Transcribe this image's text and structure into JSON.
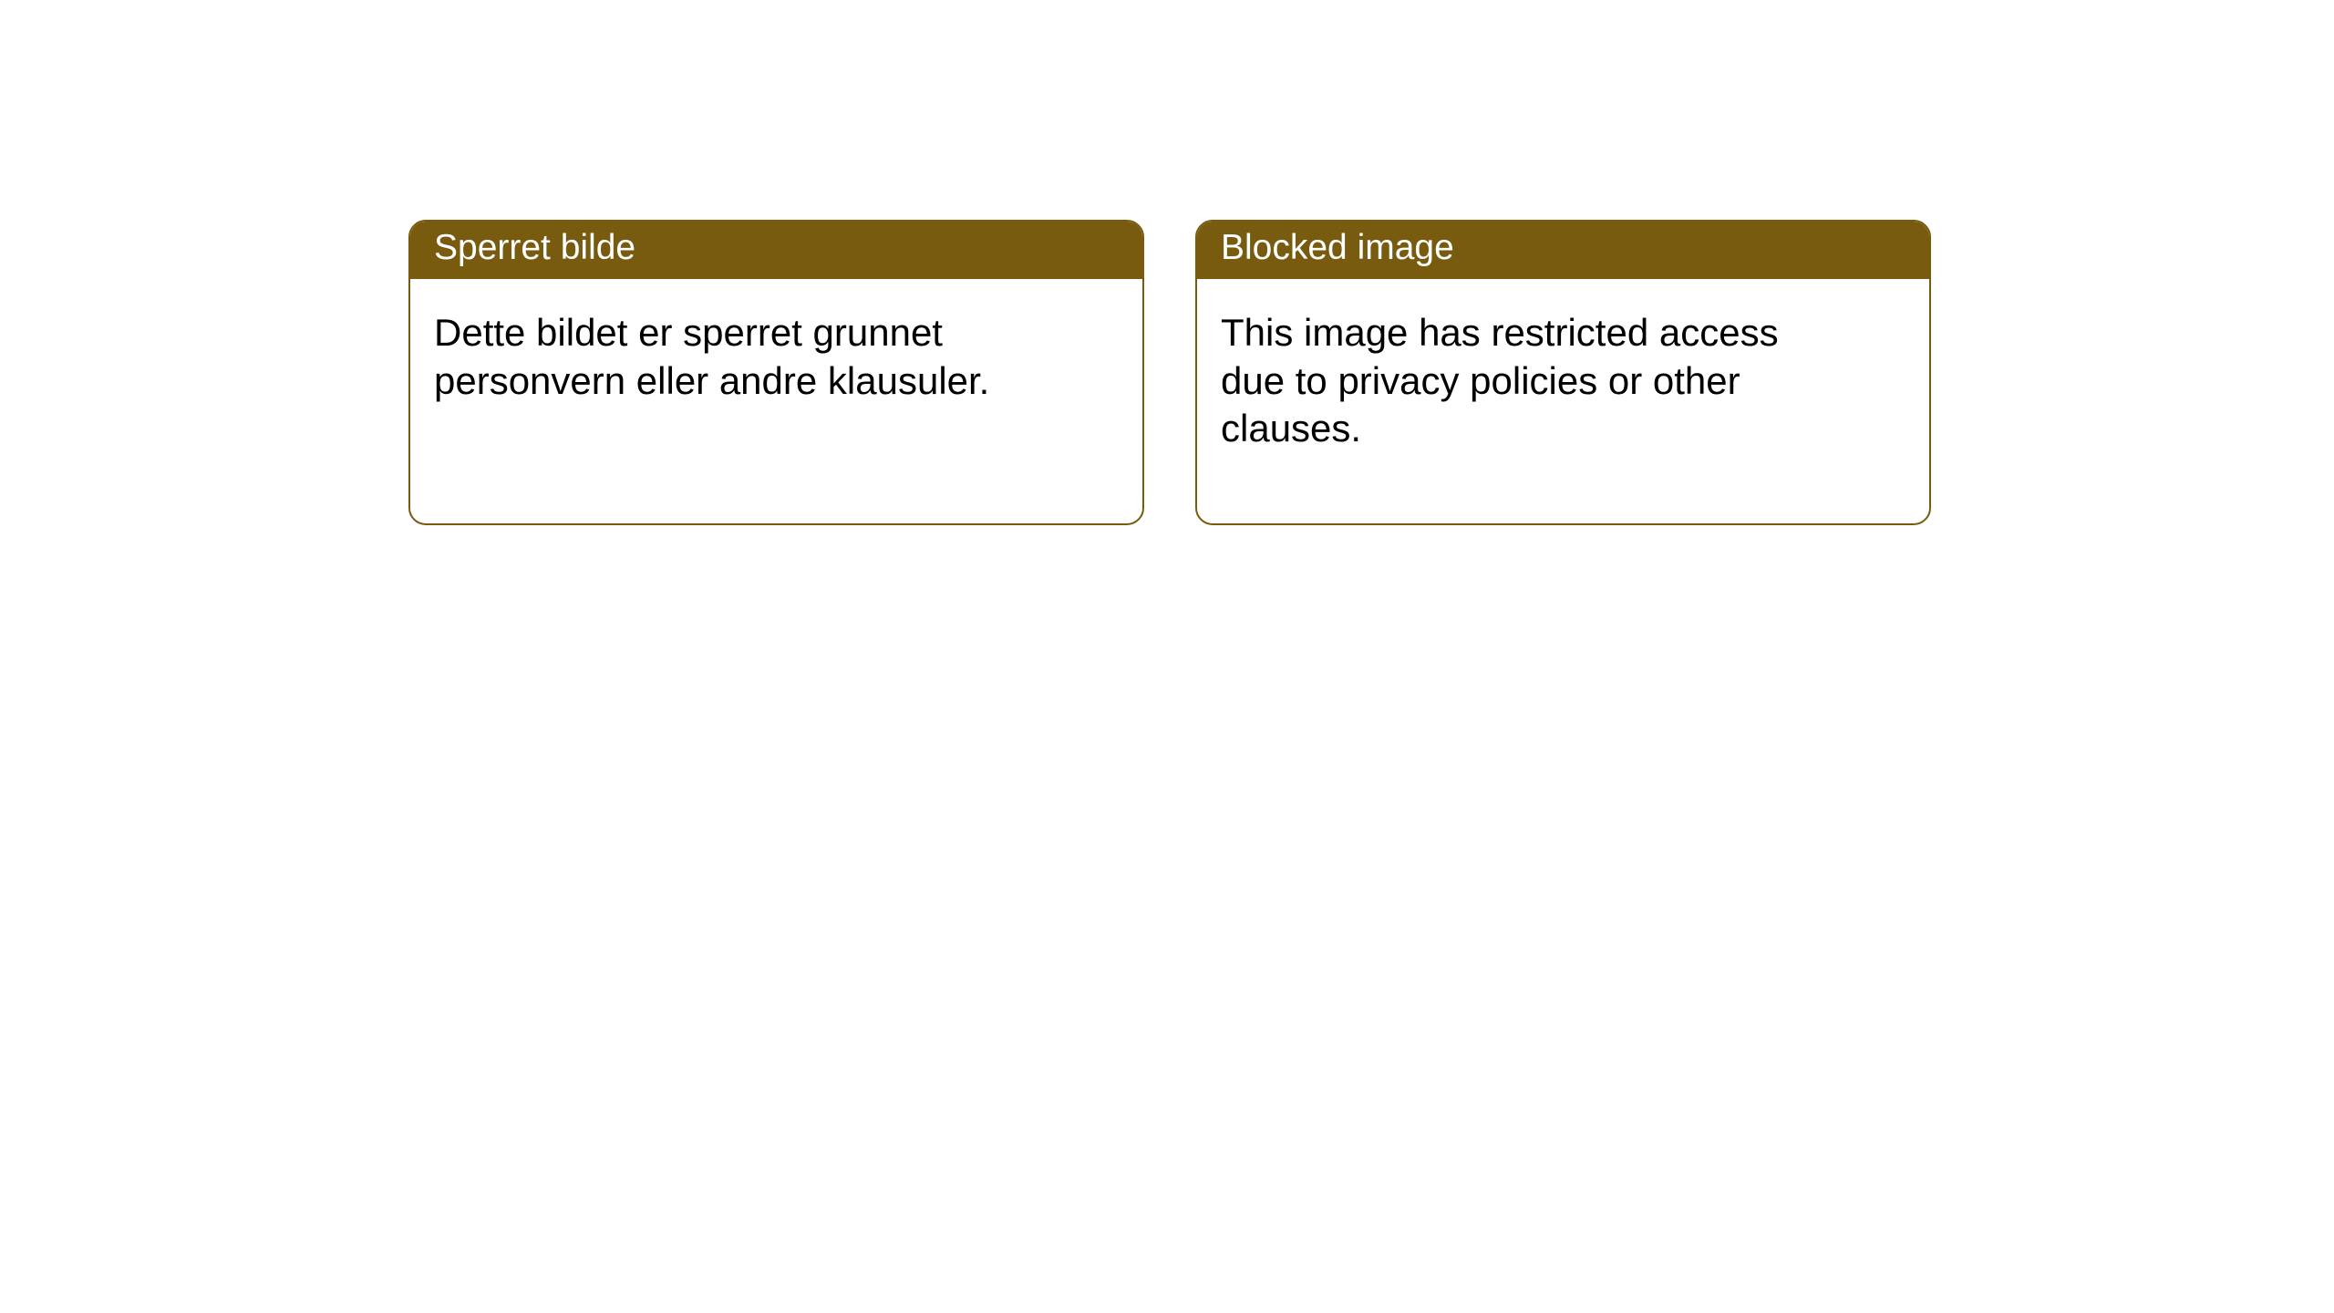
{
  "colors": {
    "card_border": "#785b0f",
    "header_bg": "#785b0f",
    "header_text": "#ffffff",
    "body_text": "#000000",
    "page_bg": "#ffffff"
  },
  "cards": {
    "norwegian": {
      "title": "Sperret bilde",
      "body": "Dette bildet er sperret grunnet personvern eller andre klausuler."
    },
    "english": {
      "title": "Blocked image",
      "body": "This image has restricted access due to privacy policies or other clauses."
    }
  }
}
